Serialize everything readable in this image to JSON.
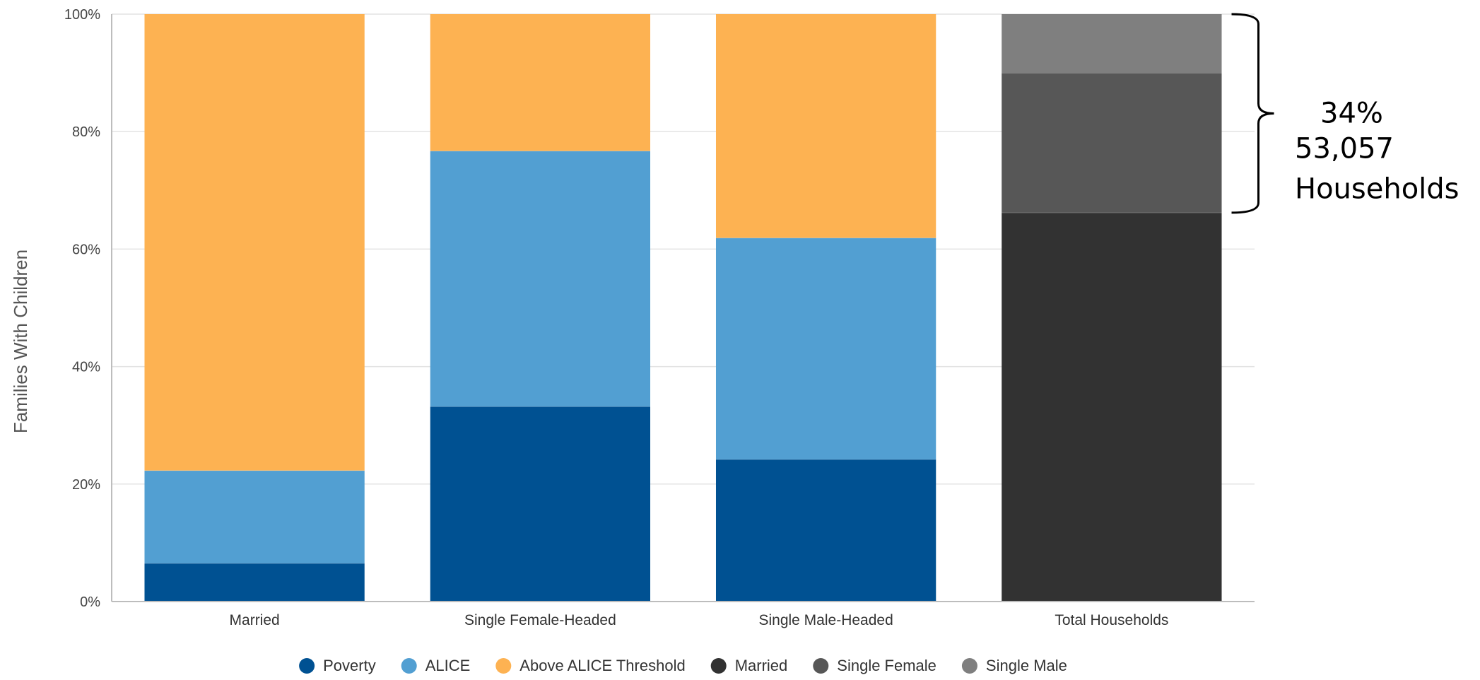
{
  "chart_data": {
    "type": "bar",
    "stacked": true,
    "ylabel": "Families With Children",
    "ylim": [
      0,
      100
    ],
    "yticks": [
      "0%",
      "20%",
      "40%",
      "60%",
      "80%",
      "100%"
    ],
    "ytick_values": [
      0,
      20,
      40,
      60,
      80,
      100
    ],
    "categories": [
      "Married",
      "Single Female-Headed",
      "Single Male-Headed",
      "Total Households"
    ],
    "grid": true,
    "legend_position": "bottom",
    "series": [
      {
        "name": "Poverty",
        "color": "#005192",
        "values": [
          6.5,
          33.2,
          24.2,
          0
        ]
      },
      {
        "name": "ALICE",
        "color": "#529fd2",
        "values": [
          15.8,
          43.5,
          37.7,
          0
        ]
      },
      {
        "name": "Above ALICE Threshold",
        "color": "#fdb252",
        "values": [
          77.7,
          23.3,
          38.1,
          0
        ]
      },
      {
        "name": "Married",
        "color": "#323232",
        "values": [
          0,
          0,
          0,
          66.2
        ]
      },
      {
        "name": "Single Female",
        "color": "#575757",
        "values": [
          0,
          0,
          0,
          23.8
        ]
      },
      {
        "name": "Single Male",
        "color": "#7f7f7f",
        "values": [
          0,
          0,
          0,
          10
        ]
      }
    ],
    "annotation": {
      "lines": [
        "34%",
        "53,057",
        "Households"
      ],
      "range": [
        66.2,
        100
      ]
    }
  }
}
